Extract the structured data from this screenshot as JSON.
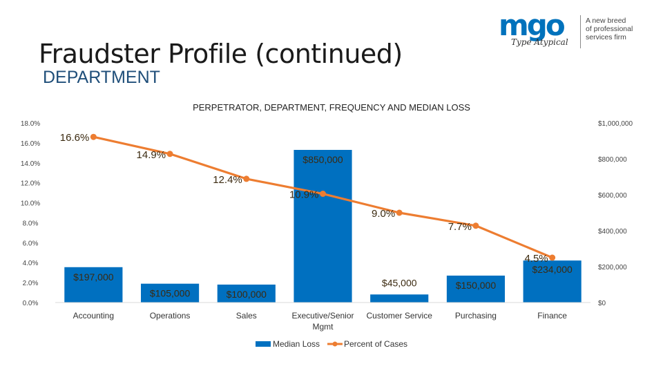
{
  "slide": {
    "title": "Fraudster Profile (continued)",
    "subtitle": "DEPARTMENT"
  },
  "logo": {
    "brand": "mgo",
    "tagline": "Type Atypical",
    "slogan": [
      "A new breed",
      "of professional",
      "services firm"
    ],
    "brand_color": "#0072bc"
  },
  "chart_data": {
    "type": "bar",
    "title": "PERPETRATOR, DEPARTMENT, FREQUENCY AND MEDIAN LOSS",
    "categories": [
      "Accounting",
      "Operations",
      "Sales",
      "Executive/Senior Mgmt",
      "Customer Service",
      "Purchasing",
      "Finance"
    ],
    "category_lines": [
      [
        "Accounting"
      ],
      [
        "Operations"
      ],
      [
        "Sales"
      ],
      [
        "Executive/Senior",
        "Mgmt"
      ],
      [
        "Customer Service"
      ],
      [
        "Purchasing"
      ],
      [
        "Finance"
      ]
    ],
    "series": [
      {
        "name": "Median Loss",
        "type": "bar",
        "axis": "right",
        "color": "#0070c0",
        "values": [
          197000,
          105000,
          100000,
          850000,
          45000,
          150000,
          234000
        ],
        "labels": [
          "$197,000",
          "$105,000",
          "$100,000",
          "$850,000",
          "$45,000",
          "$150,000",
          "$234,000"
        ]
      },
      {
        "name": "Percent of Cases",
        "type": "line",
        "axis": "left",
        "color": "#ed7d31",
        "values": [
          16.6,
          14.9,
          12.4,
          10.9,
          9.0,
          7.7,
          4.5
        ],
        "labels": [
          "16.6%",
          "14.9%",
          "12.4%",
          "10.9%",
          "9.0%",
          "7.7%",
          "4.5%"
        ]
      }
    ],
    "left_axis": {
      "min": 0,
      "max": 18,
      "ticks": [
        "0.0%",
        "2.0%",
        "4.0%",
        "6.0%",
        "8.0%",
        "10.0%",
        "12.0%",
        "14.0%",
        "16.0%",
        "18.0%"
      ]
    },
    "right_axis": {
      "min": 0,
      "max": 1000000,
      "ticks": [
        "$0",
        "$200,000",
        "$400,000",
        "$600,000",
        "$800,000",
        "$1,000,000"
      ]
    },
    "grid": false,
    "legend": "bottom"
  }
}
